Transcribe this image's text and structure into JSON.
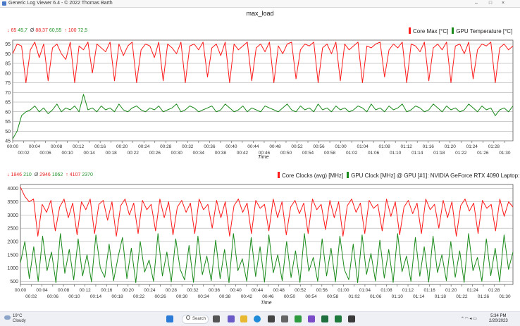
{
  "window": {
    "title": "Generic Log Viewer 6.4 - © 2022 Thomas Barth",
    "minimize": "–",
    "maximize": "□",
    "close": "×"
  },
  "plot_title": "max_load",
  "top_chart": {
    "stats": {
      "min_label": "↓",
      "min_a": "65",
      "min_b": "45,7",
      "avg_label": "Ø",
      "avg_a": "88,37",
      "avg_b": "60,55",
      "max_label": "↑",
      "max_a": "100",
      "max_b": "72,5"
    },
    "legend_a": "Core Max [°C]",
    "legend_b": "GPU Temperature [°C]",
    "xlabel": "Time"
  },
  "bottom_chart": {
    "stats": {
      "min_label": "↓",
      "min_a": "1846",
      "min_b": "210",
      "avg_label": "Ø",
      "avg_a": "2946",
      "avg_b": "1062",
      "max_label": "↑",
      "max_a": "4107",
      "max_b": "2370"
    },
    "legend_a": "Core Clocks (avg) [MHz]",
    "legend_b": "GPU Clock [MHz] @ GPU [#1]: NVIDIA GeForce RTX 4090 Laptop:",
    "xlabel": "Time"
  },
  "colors": {
    "series_a": "#ff1a1a",
    "series_b": "#1a8a1a",
    "stat_a": "#e62222",
    "stat_b": "#22922a"
  },
  "chart_data": [
    {
      "type": "line",
      "title": "max_load",
      "xlabel": "Time",
      "ylabel": "",
      "ylim": [
        45,
        97
      ],
      "y_ticks": [
        "45",
        "50",
        "55",
        "60",
        "65",
        "70",
        "75",
        "80",
        "85",
        "90",
        "95"
      ],
      "x_ticks_row1": [
        "00:00",
        "00:04",
        "00:08",
        "00:12",
        "00:16",
        "00:20",
        "00:24",
        "00:28",
        "00:32",
        "00:36",
        "00:40",
        "00:44",
        "00:48",
        "00:52",
        "00:56",
        "01:00",
        "01:04",
        "01:08",
        "01:12",
        "01:16",
        "01:20",
        "01:24",
        "01:28"
      ],
      "x_ticks_row2": [
        "00:02",
        "00:06",
        "00:10",
        "00:14",
        "00:18",
        "00:22",
        "00:26",
        "00:30",
        "00:34",
        "00:38",
        "00:42",
        "00:46",
        "00:50",
        "00:54",
        "00:58",
        "01:02",
        "01:06",
        "01:10",
        "01:14",
        "01:18",
        "01:22",
        "01:26",
        "01:30"
      ],
      "x_range_minutes": [
        0,
        91.5
      ],
      "series": [
        {
          "name": "Core Max [°C]",
          "min": 65,
          "avg": 88.37,
          "max": 100,
          "values": [
            90,
            95,
            94,
            75,
            92,
            96,
            88,
            95,
            76,
            93,
            95,
            90,
            87,
            96,
            75,
            94,
            92,
            96,
            80,
            95,
            93,
            91,
            96,
            76,
            95,
            89,
            94,
            96,
            75,
            92,
            95,
            94,
            88,
            96,
            76,
            95,
            93,
            90,
            96,
            75,
            94,
            95,
            92,
            96,
            78,
            93,
            95,
            89,
            96,
            75,
            95,
            92,
            94,
            96,
            76,
            93,
            95,
            91,
            96,
            75,
            94,
            90,
            95,
            96,
            77,
            92,
            95,
            94,
            96,
            75,
            93,
            95,
            90,
            96,
            76,
            95,
            92,
            94,
            96,
            75,
            94,
            93,
            95,
            96,
            78,
            92,
            95,
            93,
            96,
            75,
            95,
            94,
            91,
            96,
            76,
            93,
            95,
            92,
            96,
            75,
            94,
            95,
            90,
            96,
            77,
            92,
            95,
            94,
            96,
            75,
            93,
            95,
            92,
            94
          ]
        },
        {
          "name": "GPU Temperature [°C]",
          "min": 45.7,
          "avg": 60.55,
          "max": 72.5,
          "values": [
            46,
            50,
            58,
            60,
            61,
            63,
            60,
            62,
            59,
            61,
            64,
            60,
            62,
            61,
            63,
            60,
            69,
            61,
            62,
            60,
            63,
            61,
            62,
            60,
            64,
            61,
            60,
            62,
            63,
            61,
            60,
            62,
            61,
            63,
            60,
            61,
            62,
            64,
            60,
            61,
            63,
            62,
            60,
            61,
            62,
            63,
            60,
            61,
            64,
            62,
            60,
            61,
            63,
            60,
            62,
            61,
            60,
            63,
            62,
            61,
            60,
            62,
            64,
            61,
            60,
            63,
            61,
            62,
            60,
            64,
            61,
            62,
            60,
            63,
            61,
            62,
            60,
            61,
            63,
            62,
            60,
            64,
            61,
            62,
            60,
            63,
            61,
            62,
            64,
            60,
            61,
            63,
            62,
            60,
            61,
            64,
            62,
            60,
            63,
            61,
            62,
            60,
            61,
            64,
            62,
            60,
            63,
            61,
            62,
            58,
            61,
            62,
            60,
            63
          ]
        }
      ]
    },
    {
      "type": "line",
      "title": "",
      "xlabel": "Time",
      "ylabel": "",
      "ylim": [
        380,
        4150
      ],
      "y_ticks": [
        "500",
        "1000",
        "1500",
        "2000",
        "2500",
        "3000",
        "3500",
        "4000"
      ],
      "x_ticks_row1": [
        "00:00",
        "00:04",
        "00:08",
        "00:12",
        "00:16",
        "00:20",
        "00:24",
        "00:28",
        "00:32",
        "00:36",
        "00:40",
        "00:44",
        "00:48",
        "00:52",
        "00:56",
        "01:00",
        "01:04",
        "01:08",
        "01:12",
        "01:16",
        "01:20",
        "01:24",
        "01:28"
      ],
      "x_ticks_row2": [
        "00:02",
        "00:06",
        "00:10",
        "00:14",
        "00:18",
        "00:22",
        "00:26",
        "00:30",
        "00:34",
        "00:38",
        "00:42",
        "00:46",
        "00:50",
        "00:54",
        "00:58",
        "01:02",
        "01:06",
        "01:10",
        "01:14",
        "01:18",
        "01:22",
        "01:26",
        "01:30"
      ],
      "x_range_minutes": [
        0,
        91.5
      ],
      "series": [
        {
          "name": "Core Clocks (avg) [MHz]",
          "min": 1846,
          "avg": 2946,
          "max": 4107,
          "values": [
            4050,
            3700,
            3500,
            3600,
            2200,
            3400,
            3100,
            3550,
            2400,
            3300,
            3600,
            2900,
            3450,
            2250,
            3500,
            3200,
            3600,
            2300,
            3400,
            3550,
            2800,
            3500,
            2200,
            3350,
            3600,
            3000,
            3450,
            2300,
            3550,
            3200,
            3400,
            2400,
            3600,
            2900,
            3500,
            2250,
            3300,
            3550,
            3100,
            3450,
            2300,
            3600,
            3200,
            3400,
            2500,
            3550,
            2900,
            3500,
            2200,
            3350,
            3600,
            3100,
            3450,
            2300,
            3550,
            3250,
            3400,
            2400,
            3600,
            2900,
            3500,
            2250,
            3300,
            3550,
            3050,
            3450,
            2300,
            3600,
            3200,
            3400,
            2450,
            3550,
            2900,
            3500,
            2200,
            3350,
            3600,
            3100,
            3450,
            2300,
            3550,
            3250,
            3400,
            2400,
            3600,
            2950,
            3500,
            2250,
            3300,
            3550,
            3050,
            3450,
            2300,
            3600,
            3200,
            3400,
            2500,
            3550,
            2900,
            3500,
            2200,
            3350,
            3600,
            3150,
            3450,
            2300,
            3550,
            3250,
            3400,
            2400,
            3600,
            2950,
            3500,
            3300
          ]
        },
        {
          "name": "GPU Clock [MHz] @ GPU [#1]: NVIDIA GeForce RTX 4090 Laptop:",
          "min": 210,
          "avg": 1062,
          "max": 2370,
          "values": [
            1200,
            2000,
            600,
            1800,
            500,
            2200,
            900,
            1600,
            450,
            2300,
            800,
            1700,
            550,
            2100,
            700,
            1500,
            480,
            2250,
            1000,
            650,
            1900,
            520,
            1400,
            2150,
            600,
            1750,
            450,
            2000,
            850,
            1300,
            500,
            2300,
            700,
            1600,
            480,
            2100,
            950,
            550,
            1850,
            460,
            2200,
            750,
            1450,
            520,
            2050,
            600,
            1700,
            450,
            2300,
            900,
            1350,
            500,
            2150,
            680,
            1800,
            470,
            2250,
            820,
            1500,
            520,
            2000,
            640,
            1650,
            460,
            2300,
            880,
            1400,
            500,
            2100,
            700,
            1750,
            480,
            2200,
            940,
            560,
            1900,
            450,
            2250,
            760,
            1550,
            510,
            2050,
            620,
            1700,
            460,
            2300,
            860,
            1450,
            500,
            2150,
            690,
            1800,
            470,
            2200,
            830,
            1500,
            520,
            2000,
            650,
            1650,
            460,
            2300,
            900,
            1400,
            500,
            2100,
            710,
            1750,
            480,
            2250,
            950,
            1600
          ]
        }
      ]
    }
  ],
  "taskbar": {
    "weather_temp": "19°C",
    "weather_desc": "Cloudy",
    "search_label": "Search",
    "time": "5:34 PM",
    "date": "2/20/2023",
    "tray_caret": "^"
  }
}
